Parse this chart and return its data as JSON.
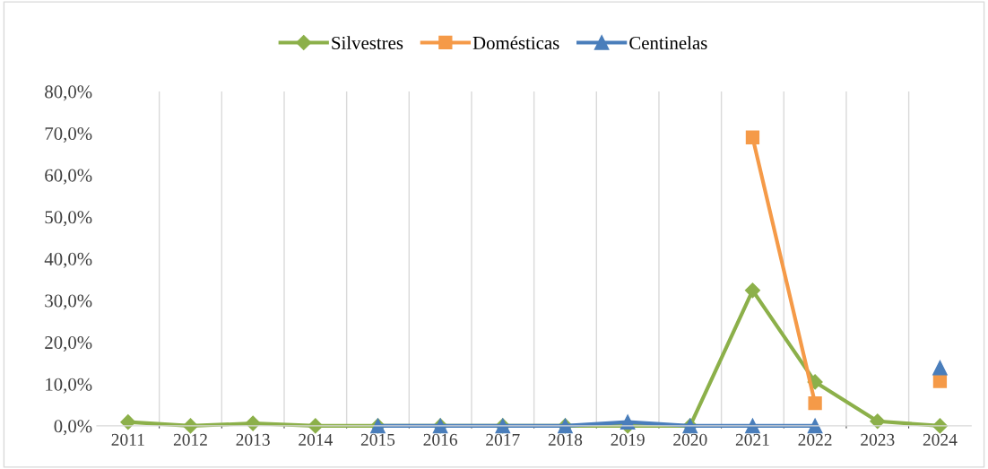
{
  "chart_data": {
    "type": "line",
    "categories": [
      "2011",
      "2012",
      "2013",
      "2014",
      "2015",
      "2016",
      "2017",
      "2018",
      "2019",
      "2020",
      "2021",
      "2022",
      "2023",
      "2024"
    ],
    "series": [
      {
        "name": "Silvestres",
        "color": "#8cb04a",
        "marker": "diamond",
        "values": [
          0.9,
          0,
          0.6,
          0,
          0,
          0,
          0,
          0,
          0,
          0,
          32.4,
          10.5,
          1.1,
          0
        ]
      },
      {
        "name": "Domésticas",
        "color": "#f59a48",
        "marker": "square",
        "values": [
          null,
          null,
          null,
          null,
          null,
          null,
          null,
          null,
          null,
          null,
          69.0,
          5.4,
          null,
          10.7
        ]
      },
      {
        "name": "Centinelas",
        "color": "#4a7ebb",
        "marker": "triangle",
        "values": [
          null,
          null,
          null,
          null,
          0,
          0,
          0,
          0,
          0.9,
          0,
          0,
          0,
          null,
          13.9
        ]
      }
    ],
    "ylim": [
      0,
      80
    ],
    "yticks": [
      {
        "value": 0,
        "label": "0,0%"
      },
      {
        "value": 10,
        "label": "10,0%"
      },
      {
        "value": 20,
        "label": "20,0%"
      },
      {
        "value": 30,
        "label": "30,0%"
      },
      {
        "value": 40,
        "label": "40,0%"
      },
      {
        "value": 50,
        "label": "50,0%"
      },
      {
        "value": 60,
        "label": "60,0%"
      },
      {
        "value": 70,
        "label": "70,0%"
      },
      {
        "value": 80,
        "label": "80,0%"
      }
    ],
    "grid": "x",
    "legend": "top",
    "line_style": "solid"
  }
}
